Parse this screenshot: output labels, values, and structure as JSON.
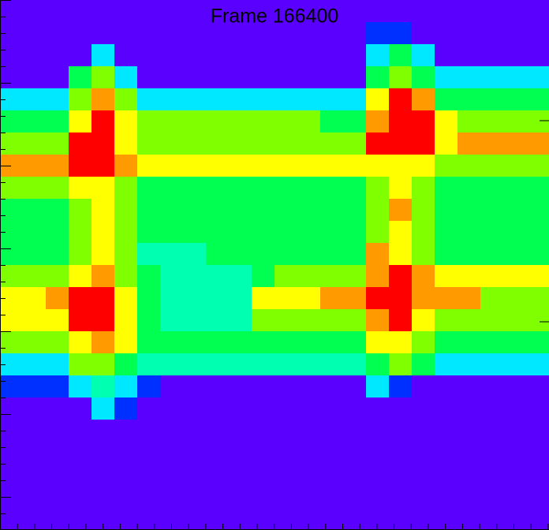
{
  "chart_data": {
    "type": "heatmap",
    "title": "Frame 166400",
    "palette": [
      "#5a00ff",
      "#0030ff",
      "#00e8ff",
      "#00ffb0",
      "#00ff50",
      "#80ff00",
      "#ffff00",
      "#ff9a00",
      "#ff0000"
    ],
    "z": [
      [
        0,
        0,
        0,
        0,
        0,
        0,
        0,
        0,
        0,
        0,
        0,
        0,
        0,
        0,
        0,
        0,
        0,
        0,
        0,
        0,
        0,
        0,
        0,
        0
      ],
      [
        0,
        0,
        0,
        0,
        0,
        0,
        0,
        0,
        0,
        0,
        0,
        0,
        0,
        0,
        0,
        0,
        1,
        1,
        0,
        0,
        0,
        0,
        0,
        0
      ],
      [
        0,
        0,
        0,
        0,
        2,
        0,
        0,
        0,
        0,
        0,
        0,
        0,
        0,
        0,
        0,
        0,
        2,
        4,
        2,
        0,
        0,
        0,
        0,
        0
      ],
      [
        0,
        0,
        0,
        4,
        5,
        2,
        0,
        0,
        0,
        0,
        0,
        0,
        0,
        0,
        0,
        0,
        4,
        5,
        4,
        2,
        2,
        2,
        2,
        2
      ],
      [
        2,
        2,
        2,
        5,
        7,
        5,
        2,
        2,
        2,
        2,
        2,
        2,
        2,
        2,
        2,
        2,
        6,
        8,
        7,
        4,
        4,
        4,
        4,
        4
      ],
      [
        4,
        4,
        4,
        6,
        8,
        6,
        5,
        5,
        5,
        5,
        5,
        5,
        5,
        5,
        4,
        4,
        7,
        8,
        8,
        6,
        5,
        5,
        5,
        5
      ],
      [
        5,
        5,
        5,
        8,
        8,
        6,
        5,
        5,
        5,
        5,
        5,
        5,
        5,
        5,
        5,
        5,
        8,
        8,
        8,
        6,
        7,
        7,
        7,
        7
      ],
      [
        7,
        7,
        7,
        8,
        8,
        7,
        6,
        6,
        6,
        6,
        6,
        6,
        6,
        6,
        6,
        6,
        6,
        6,
        6,
        5,
        5,
        5,
        5,
        5
      ],
      [
        5,
        5,
        5,
        6,
        6,
        5,
        4,
        4,
        4,
        4,
        4,
        4,
        4,
        4,
        4,
        4,
        5,
        6,
        5,
        4,
        4,
        4,
        4,
        4
      ],
      [
        4,
        4,
        4,
        5,
        6,
        5,
        4,
        4,
        4,
        4,
        4,
        4,
        4,
        4,
        4,
        4,
        5,
        7,
        5,
        4,
        4,
        4,
        4,
        4
      ],
      [
        4,
        4,
        4,
        5,
        6,
        5,
        4,
        4,
        4,
        4,
        4,
        4,
        4,
        4,
        4,
        4,
        5,
        6,
        5,
        4,
        4,
        4,
        4,
        4
      ],
      [
        4,
        4,
        4,
        5,
        6,
        5,
        3,
        3,
        3,
        4,
        4,
        4,
        4,
        4,
        4,
        4,
        7,
        6,
        5,
        4,
        4,
        4,
        4,
        4
      ],
      [
        5,
        5,
        5,
        6,
        7,
        5,
        4,
        3,
        3,
        3,
        3,
        4,
        5,
        5,
        5,
        5,
        7,
        8,
        7,
        6,
        6,
        6,
        6,
        6
      ],
      [
        6,
        6,
        7,
        8,
        8,
        6,
        4,
        3,
        3,
        3,
        3,
        6,
        6,
        6,
        7,
        7,
        8,
        8,
        7,
        7,
        7,
        5,
        5,
        5
      ],
      [
        6,
        6,
        6,
        8,
        8,
        6,
        4,
        3,
        3,
        3,
        3,
        5,
        5,
        5,
        5,
        5,
        7,
        8,
        6,
        5,
        5,
        5,
        5,
        5
      ],
      [
        5,
        5,
        5,
        6,
        7,
        6,
        4,
        4,
        4,
        4,
        4,
        4,
        4,
        4,
        4,
        4,
        6,
        6,
        5,
        4,
        4,
        4,
        4,
        4
      ],
      [
        2,
        2,
        2,
        5,
        5,
        4,
        3,
        3,
        3,
        3,
        3,
        3,
        3,
        3,
        3,
        3,
        4,
        5,
        4,
        2,
        2,
        2,
        2,
        2
      ],
      [
        1,
        1,
        1,
        2,
        3,
        2,
        1,
        0,
        0,
        0,
        0,
        0,
        0,
        0,
        0,
        0,
        2,
        1,
        0,
        0,
        0,
        0,
        0,
        0
      ],
      [
        0,
        0,
        0,
        0,
        2,
        1,
        0,
        0,
        0,
        0,
        0,
        0,
        0,
        0,
        0,
        0,
        0,
        0,
        0,
        0,
        0,
        0,
        0,
        0
      ],
      [
        0,
        0,
        0,
        0,
        0,
        0,
        0,
        0,
        0,
        0,
        0,
        0,
        0,
        0,
        0,
        0,
        0,
        0,
        0,
        0,
        0,
        0,
        0,
        0
      ],
      [
        0,
        0,
        0,
        0,
        0,
        0,
        0,
        0,
        0,
        0,
        0,
        0,
        0,
        0,
        0,
        0,
        0,
        0,
        0,
        0,
        0,
        0,
        0,
        0
      ],
      [
        0,
        0,
        0,
        0,
        0,
        0,
        0,
        0,
        0,
        0,
        0,
        0,
        0,
        0,
        0,
        0,
        0,
        0,
        0,
        0,
        0,
        0,
        0,
        0
      ],
      [
        0,
        0,
        0,
        0,
        0,
        0,
        0,
        0,
        0,
        0,
        0,
        0,
        0,
        0,
        0,
        0,
        0,
        0,
        0,
        0,
        0,
        0,
        0,
        0
      ],
      [
        0,
        0,
        0,
        0,
        0,
        0,
        0,
        0,
        0,
        0,
        0,
        0,
        0,
        0,
        0,
        0,
        0,
        0,
        0,
        0,
        0,
        0,
        0,
        0
      ]
    ]
  }
}
